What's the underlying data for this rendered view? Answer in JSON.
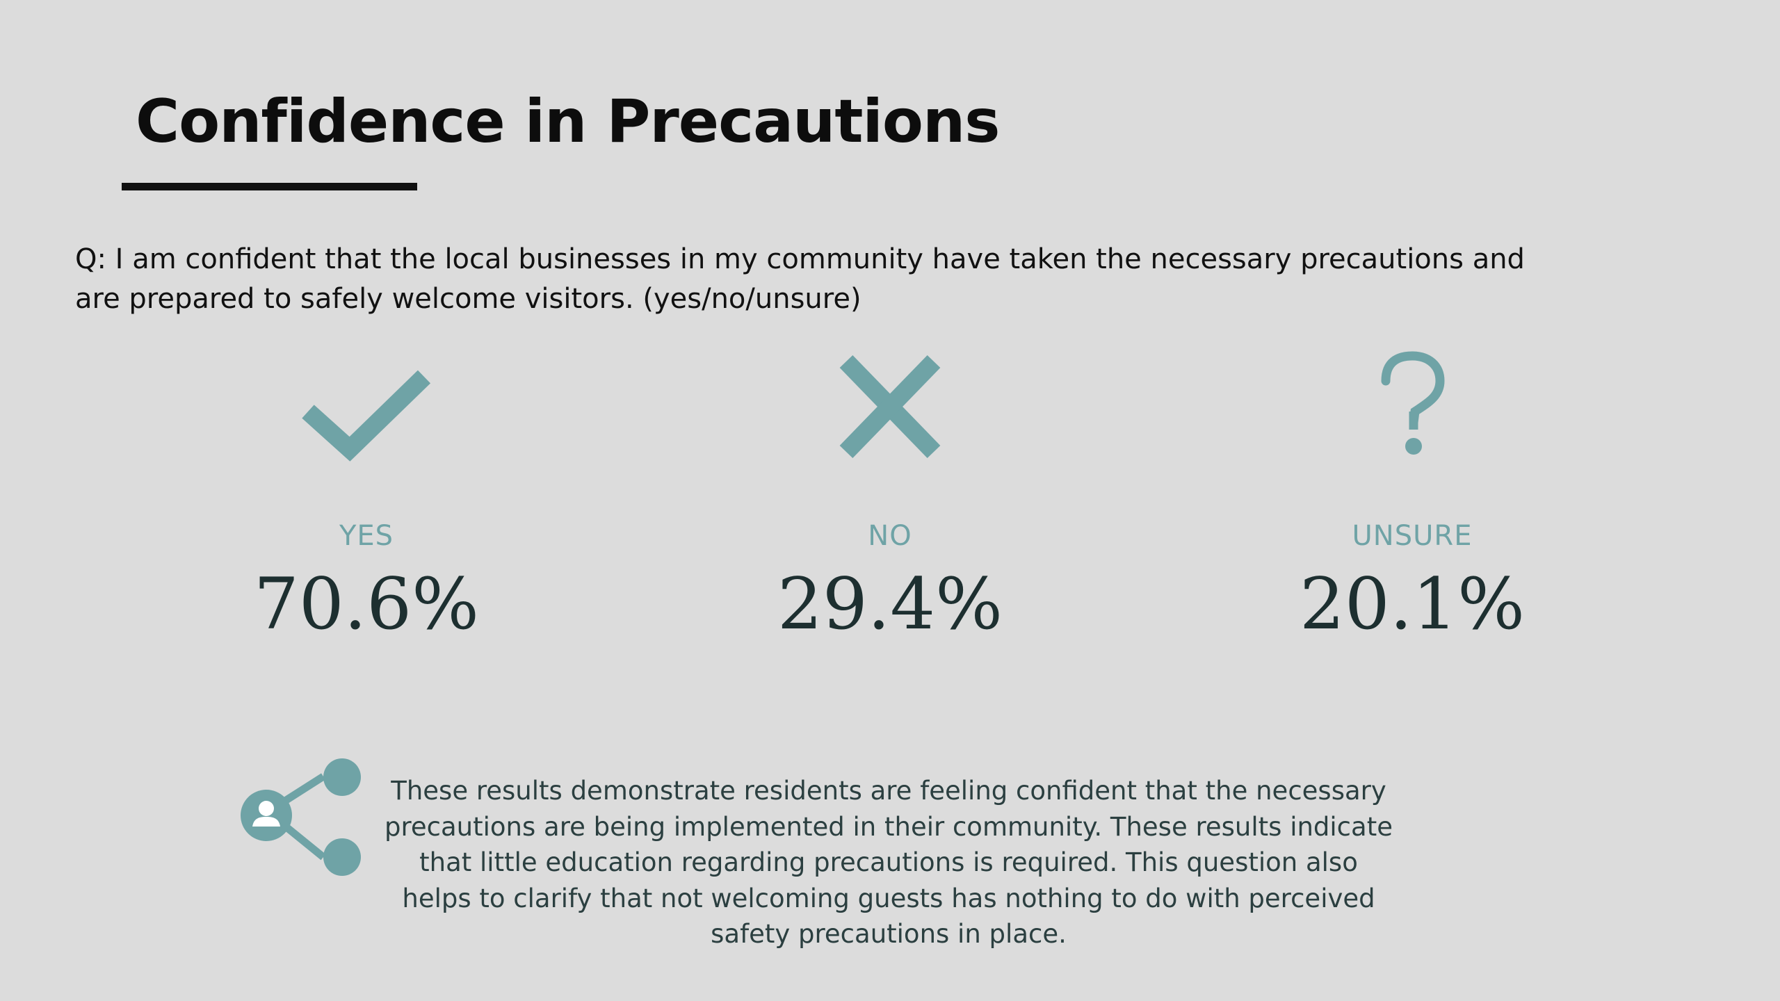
{
  "slide": {
    "title": "Confidence in Precautions",
    "question": "Q: I am confident that the local businesses in my community have taken the necessary precautions and are prepared to safely welcome visitors. (yes/no/unsure)",
    "results": [
      {
        "label": "YES",
        "value": "70.6%",
        "icon": "check-icon"
      },
      {
        "label": "NO",
        "value": "29.4%",
        "icon": "x-icon"
      },
      {
        "label": "UNSURE",
        "value": "20.1%",
        "icon": "question-mark-icon"
      }
    ],
    "summary": "These results demonstrate residents are feeling confident that the necessary precautions are being implemented in their community. These results indicate that little education regarding precautions is required. This question also helps to clarify that not welcoming guests has nothing to do with perceived safety precautions in place.",
    "summary_icon": "share-person-icon",
    "colors": {
      "background": "#dcdcdc",
      "accent": "#6fa3a6",
      "value_text": "#1d2f30",
      "title_text": "#0d0d0d"
    }
  }
}
